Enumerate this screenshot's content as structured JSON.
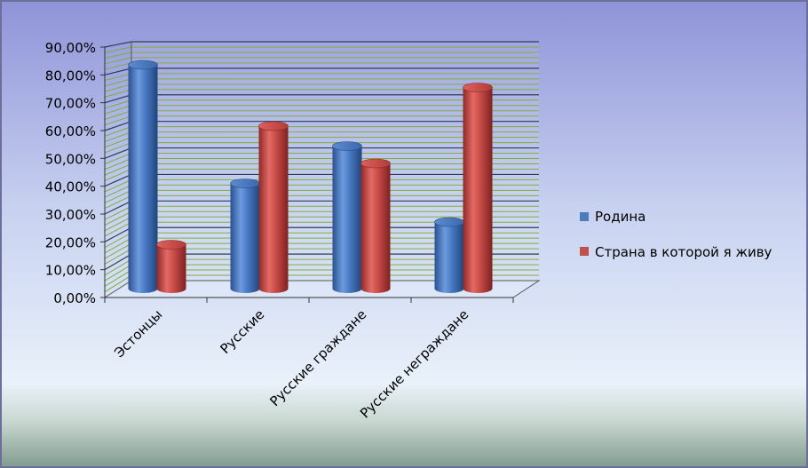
{
  "chart_data": {
    "type": "bar",
    "categories": [
      "Эстонцы",
      "Русские",
      "Русские граждане",
      "Русские неграждане"
    ],
    "series": [
      {
        "name": "Родина",
        "values": [
          84.0,
          39.5,
          53.5,
          25.0
        ],
        "color": "#4a7ebb"
      },
      {
        "name": "Страна в которой я живу",
        "values": [
          16.5,
          61.0,
          47.0,
          75.5
        ],
        "color": "#c0504d"
      }
    ],
    "yticks": [
      "0,00%",
      "10,00%",
      "20,00%",
      "30,00%",
      "40,00%",
      "50,00%",
      "60,00%",
      "70,00%",
      "80,00%",
      "90,00%"
    ],
    "ylim": [
      0,
      90
    ],
    "legend_position": "right",
    "grid": true
  }
}
